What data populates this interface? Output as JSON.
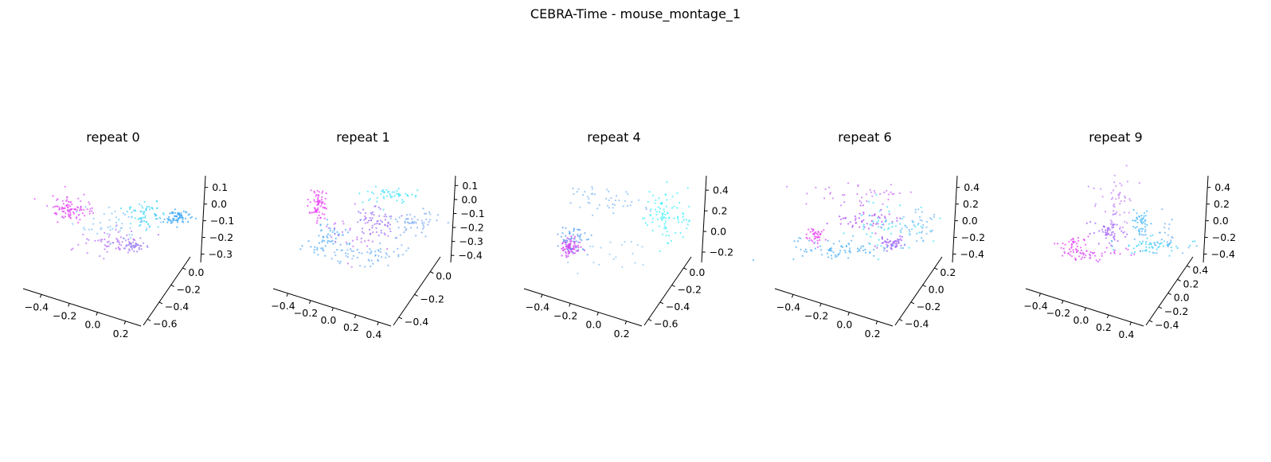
{
  "figure": {
    "title": "CEBRA-Time - mouse_montage_1"
  },
  "chart_data": [
    {
      "type": "scatter",
      "title": "repeat 0",
      "xticks": [
        "−0.4",
        "−0.2",
        "0.0",
        "0.2"
      ],
      "yticks": [
        "−0.6",
        "−0.4",
        "−0.2",
        "0.0"
      ],
      "zticks": [
        "0.1",
        "0.0",
        "−0.1",
        "−0.2",
        "−0.3"
      ],
      "clusters": [
        {
          "color": "#e93cf4",
          "cx": 0.19,
          "cy": 0.3,
          "sx": 0.05,
          "sy": 0.05,
          "n": 60
        },
        {
          "color": "#d45df5",
          "cx": 0.24,
          "cy": 0.28,
          "sx": 0.08,
          "sy": 0.07,
          "n": 40
        },
        {
          "color": "#b76cf5",
          "cx": 0.47,
          "cy": 0.62,
          "sx": 0.09,
          "sy": 0.08,
          "n": 55
        },
        {
          "color": "#9c7af6",
          "cx": 0.6,
          "cy": 0.64,
          "sx": 0.04,
          "sy": 0.04,
          "n": 45
        },
        {
          "color": "#3fd8f8",
          "cx": 0.67,
          "cy": 0.33,
          "sx": 0.07,
          "sy": 0.06,
          "n": 60
        },
        {
          "color": "#3aa6f6",
          "cx": 0.87,
          "cy": 0.36,
          "sx": 0.05,
          "sy": 0.04,
          "n": 70
        },
        {
          "color": "#7fc0f8",
          "cx": 0.5,
          "cy": 0.42,
          "sx": 0.14,
          "sy": 0.1,
          "n": 50
        }
      ]
    },
    {
      "type": "scatter",
      "title": "repeat 1",
      "xticks": [
        "−0.4",
        "−0.2",
        "0.0",
        "0.2",
        "0.4"
      ],
      "yticks": [
        "−0.4",
        "−0.2",
        "0.0"
      ],
      "zticks": [
        "0.1",
        "0.0",
        "−0.1",
        "−0.2",
        "−0.3",
        "−0.4"
      ],
      "clusters": [
        {
          "color": "#e83cf4",
          "cx": 0.19,
          "cy": 0.25,
          "sx": 0.03,
          "sy": 0.08,
          "n": 70
        },
        {
          "color": "#4fa8f6",
          "cx": 0.26,
          "cy": 0.58,
          "sx": 0.07,
          "sy": 0.09,
          "n": 60
        },
        {
          "color": "#3fe0f8",
          "cx": 0.64,
          "cy": 0.16,
          "sx": 0.1,
          "sy": 0.04,
          "n": 50
        },
        {
          "color": "#9a6ef6",
          "cx": 0.55,
          "cy": 0.4,
          "sx": 0.07,
          "sy": 0.08,
          "n": 60
        },
        {
          "color": "#7aa8f6",
          "cx": 0.8,
          "cy": 0.44,
          "sx": 0.08,
          "sy": 0.06,
          "n": 55
        },
        {
          "color": "#6fb0f6",
          "cx": 0.5,
          "cy": 0.73,
          "sx": 0.15,
          "sy": 0.05,
          "n": 60
        },
        {
          "color": "#c06cf5",
          "cx": 0.4,
          "cy": 0.55,
          "sx": 0.12,
          "sy": 0.12,
          "n": 35
        }
      ]
    },
    {
      "type": "scatter",
      "title": "repeat 4",
      "xticks": [
        "−0.4",
        "−0.2",
        "0.0",
        "0.2"
      ],
      "yticks": [
        "−0.6",
        "−0.4",
        "−0.2",
        "0.0"
      ],
      "zticks": [
        "0.4",
        "0.2",
        "0.0",
        "−0.2"
      ],
      "clusters": [
        {
          "color": "#c93cf0",
          "cx": 0.2,
          "cy": 0.66,
          "sx": 0.03,
          "sy": 0.04,
          "n": 80
        },
        {
          "color": "#5c9ef5",
          "cx": 0.22,
          "cy": 0.6,
          "sx": 0.05,
          "sy": 0.08,
          "n": 50
        },
        {
          "color": "#7fb8f6",
          "cx": 0.4,
          "cy": 0.2,
          "sx": 0.14,
          "sy": 0.07,
          "n": 45
        },
        {
          "color": "#3ff0f8",
          "cx": 0.8,
          "cy": 0.35,
          "sx": 0.07,
          "sy": 0.13,
          "n": 90
        },
        {
          "color": "#8ec8f8",
          "cx": 0.45,
          "cy": 0.7,
          "sx": 0.15,
          "sy": 0.08,
          "n": 20
        }
      ]
    },
    {
      "type": "scatter",
      "title": "repeat 6",
      "xticks": [
        "−0.4",
        "−0.2",
        "0.0",
        "0.2"
      ],
      "yticks": [
        "−0.4",
        "−0.2",
        "0.0",
        "0.2"
      ],
      "zticks": [
        "0.4",
        "0.2",
        "0.0",
        "−0.2",
        "−0.4"
      ],
      "clusters": [
        {
          "color": "#e83cf4",
          "cx": 0.17,
          "cy": 0.56,
          "sx": 0.03,
          "sy": 0.05,
          "n": 40
        },
        {
          "color": "#c86ef5",
          "cx": 0.45,
          "cy": 0.15,
          "sx": 0.14,
          "sy": 0.05,
          "n": 40
        },
        {
          "color": "#b04cf4",
          "cx": 0.5,
          "cy": 0.4,
          "sx": 0.1,
          "sy": 0.06,
          "n": 55
        },
        {
          "color": "#9f5cf5",
          "cx": 0.64,
          "cy": 0.63,
          "sx": 0.05,
          "sy": 0.04,
          "n": 50
        },
        {
          "color": "#4fb0f6",
          "cx": 0.35,
          "cy": 0.68,
          "sx": 0.17,
          "sy": 0.05,
          "n": 80
        },
        {
          "color": "#3fe0f8",
          "cx": 0.62,
          "cy": 0.48,
          "sx": 0.12,
          "sy": 0.12,
          "n": 55
        },
        {
          "color": "#6fb8f6",
          "cx": 0.8,
          "cy": 0.45,
          "sx": 0.07,
          "sy": 0.1,
          "n": 40
        }
      ]
    },
    {
      "type": "scatter",
      "title": "repeat 9",
      "xticks": [
        "−0.4",
        "−0.2",
        "0.0",
        "0.2",
        "0.4"
      ],
      "yticks": [
        "−0.4",
        "−0.2",
        "0.0",
        "0.2",
        "0.4"
      ],
      "zticks": [
        "0.4",
        "0.2",
        "0.0",
        "−0.2",
        "−0.4"
      ],
      "clusters": [
        {
          "color": "#e83cf4",
          "cx": 0.22,
          "cy": 0.65,
          "sx": 0.05,
          "sy": 0.05,
          "n": 40
        },
        {
          "color": "#d64af4",
          "cx": 0.35,
          "cy": 0.73,
          "sx": 0.12,
          "sy": 0.03,
          "n": 45
        },
        {
          "color": "#a060f6",
          "cx": 0.44,
          "cy": 0.5,
          "sx": 0.05,
          "sy": 0.06,
          "n": 55
        },
        {
          "color": "#c080f6",
          "cx": 0.48,
          "cy": 0.23,
          "sx": 0.06,
          "sy": 0.15,
          "n": 50
        },
        {
          "color": "#3fb6f8",
          "cx": 0.63,
          "cy": 0.42,
          "sx": 0.03,
          "sy": 0.06,
          "n": 45
        },
        {
          "color": "#3fd0f8",
          "cx": 0.7,
          "cy": 0.65,
          "sx": 0.1,
          "sy": 0.04,
          "n": 60
        },
        {
          "color": "#6fb0f6",
          "cx": 0.75,
          "cy": 0.55,
          "sx": 0.08,
          "sy": 0.1,
          "n": 30
        }
      ]
    }
  ]
}
